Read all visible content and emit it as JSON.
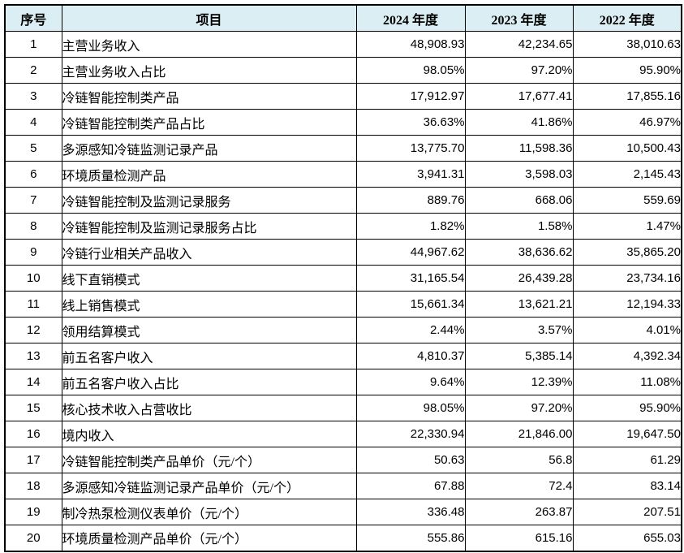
{
  "table": {
    "columns": [
      "序号",
      "项目",
      "2024 年度",
      "2023 年度",
      "2022 年度"
    ],
    "rows": [
      {
        "no": "1",
        "item": "主营业务收入",
        "y2024": "48,908.93",
        "y2023": "42,234.65",
        "y2022": "38,010.63"
      },
      {
        "no": "2",
        "item": "主营业务收入占比",
        "y2024": "98.05%",
        "y2023": "97.20%",
        "y2022": "95.90%"
      },
      {
        "no": "3",
        "item": "冷链智能控制类产品",
        "y2024": "17,912.97",
        "y2023": "17,677.41",
        "y2022": "17,855.16"
      },
      {
        "no": "4",
        "item": "冷链智能控制类产品占比",
        "y2024": "36.63%",
        "y2023": "41.86%",
        "y2022": "46.97%"
      },
      {
        "no": "5",
        "item": "多源感知冷链监测记录产品",
        "y2024": "13,775.70",
        "y2023": "11,598.36",
        "y2022": "10,500.43"
      },
      {
        "no": "6",
        "item": "环境质量检测产品",
        "y2024": "3,941.31",
        "y2023": "3,598.03",
        "y2022": "2,145.43"
      },
      {
        "no": "7",
        "item": "冷链智能控制及监测记录服务",
        "y2024": "889.76",
        "y2023": "668.06",
        "y2022": "559.69"
      },
      {
        "no": "8",
        "item": "冷链智能控制及监测记录服务占比",
        "y2024": "1.82%",
        "y2023": "1.58%",
        "y2022": "1.47%"
      },
      {
        "no": "9",
        "item": "冷链行业相关产品收入",
        "y2024": "44,967.62",
        "y2023": "38,636.62",
        "y2022": "35,865.20"
      },
      {
        "no": "10",
        "item": "线下直销模式",
        "y2024": "31,165.54",
        "y2023": "26,439.28",
        "y2022": "23,734.16"
      },
      {
        "no": "11",
        "item": "线上销售模式",
        "y2024": "15,661.34",
        "y2023": "13,621.21",
        "y2022": "12,194.33"
      },
      {
        "no": "12",
        "item": "领用结算模式",
        "y2024": "2.44%",
        "y2023": "3.57%",
        "y2022": "4.01%"
      },
      {
        "no": "13",
        "item": "前五名客户收入",
        "y2024": "4,810.37",
        "y2023": "5,385.14",
        "y2022": "4,392.34"
      },
      {
        "no": "14",
        "item": "前五名客户收入占比",
        "y2024": "9.64%",
        "y2023": "12.39%",
        "y2022": "11.08%"
      },
      {
        "no": "15",
        "item": "核心技术收入占营收比",
        "y2024": "98.05%",
        "y2023": "97.20%",
        "y2022": "95.90%"
      },
      {
        "no": "16",
        "item": "境内收入",
        "y2024": "22,330.94",
        "y2023": "21,846.00",
        "y2022": "19,647.50"
      },
      {
        "no": "17",
        "item": "冷链智能控制类产品单价（元/个）",
        "y2024": "50.63",
        "y2023": "56.8",
        "y2022": "61.29"
      },
      {
        "no": "18",
        "item": "多源感知冷链监测记录产品单价（元/个）",
        "y2024": "67.88",
        "y2023": "72.4",
        "y2022": "83.14"
      },
      {
        "no": "19",
        "item": "制冷热泵检测仪表单价（元/个）",
        "y2024": "336.48",
        "y2023": "263.87",
        "y2022": "207.51"
      },
      {
        "no": "20",
        "item": "环境质量检测产品单价（元/个）",
        "y2024": "555.86",
        "y2023": "615.16",
        "y2022": "655.03"
      }
    ]
  },
  "colors": {
    "header_bg": "#daeef3",
    "border": "#000000",
    "text": "#000000",
    "row_bg": "#ffffff"
  }
}
